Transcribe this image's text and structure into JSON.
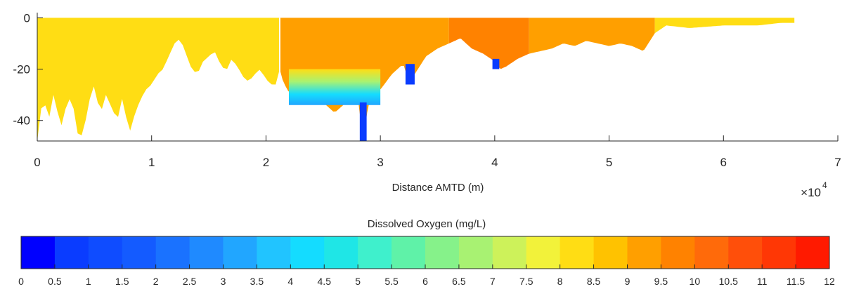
{
  "chart_data": [
    {
      "type": "heatmap",
      "title": "",
      "xlabel": "Distance AMTD (m)",
      "ylabel": "",
      "x_exponent_label": "×10",
      "x_exponent_power": "4",
      "xlim": [
        0,
        7
      ],
      "ylim": [
        -48,
        2
      ],
      "x_ticks": [
        0,
        1,
        2,
        3,
        4,
        5,
        6,
        7
      ],
      "x_tick_labels": [
        "0",
        "1",
        "2",
        "3",
        "4",
        "5",
        "6",
        "7"
      ],
      "y_ticks": [
        0,
        -20,
        -40
      ],
      "y_tick_labels": [
        "0",
        "-20",
        "-40"
      ],
      "x_units_note": "x values in units of 10^4 m",
      "surface_do_by_reach": [
        {
          "x_start": 0.0,
          "x_end": 2.12,
          "do_mg_l": 8.3
        },
        {
          "x_start": 2.12,
          "x_end": 3.6,
          "do_mg_l": 9.0
        },
        {
          "x_start": 3.6,
          "x_end": 4.3,
          "do_mg_l": 9.6
        },
        {
          "x_start": 4.3,
          "x_end": 5.4,
          "do_mg_l": 9.3
        },
        {
          "x_start": 5.4,
          "x_end": 6.62,
          "do_mg_l": 8.2
        }
      ],
      "bottom_depth_profile": [
        [
          0.0,
          -48
        ],
        [
          0.05,
          -30
        ],
        [
          0.1,
          -40
        ],
        [
          0.15,
          -28
        ],
        [
          0.2,
          -44
        ],
        [
          0.25,
          -35
        ],
        [
          0.3,
          -30
        ],
        [
          0.35,
          -45
        ],
        [
          0.4,
          -46
        ],
        [
          0.45,
          -33
        ],
        [
          0.5,
          -26
        ],
        [
          0.55,
          -38
        ],
        [
          0.6,
          -30
        ],
        [
          0.65,
          -35
        ],
        [
          0.7,
          -40
        ],
        [
          0.75,
          -30
        ],
        [
          0.8,
          -46
        ],
        [
          0.85,
          -38
        ],
        [
          0.9,
          -32
        ],
        [
          0.95,
          -28
        ],
        [
          1.0,
          -26
        ],
        [
          1.05,
          -22
        ],
        [
          1.1,
          -20
        ],
        [
          1.15,
          -15
        ],
        [
          1.2,
          -10
        ],
        [
          1.25,
          -8
        ],
        [
          1.3,
          -14
        ],
        [
          1.35,
          -20
        ],
        [
          1.4,
          -22
        ],
        [
          1.45,
          -17
        ],
        [
          1.5,
          -15
        ],
        [
          1.55,
          -13
        ],
        [
          1.6,
          -18
        ],
        [
          1.65,
          -21
        ],
        [
          1.7,
          -16
        ],
        [
          1.75,
          -19
        ],
        [
          1.8,
          -23
        ],
        [
          1.85,
          -25
        ],
        [
          1.9,
          -22
        ],
        [
          1.95,
          -20
        ],
        [
          2.0,
          -24
        ],
        [
          2.05,
          -26
        ],
        [
          2.1,
          -26
        ],
        [
          2.12,
          -20
        ],
        [
          2.15,
          -25
        ],
        [
          2.2,
          -29
        ],
        [
          2.3,
          -31
        ],
        [
          2.4,
          -34
        ],
        [
          2.5,
          -33
        ],
        [
          2.55,
          -35
        ],
        [
          2.6,
          -37
        ],
        [
          2.7,
          -33
        ],
        [
          2.8,
          -30
        ],
        [
          2.85,
          -48
        ],
        [
          2.9,
          -32
        ],
        [
          3.0,
          -28
        ],
        [
          3.1,
          -22
        ],
        [
          3.2,
          -18
        ],
        [
          3.25,
          -25
        ],
        [
          3.3,
          -22
        ],
        [
          3.4,
          -15
        ],
        [
          3.5,
          -12
        ],
        [
          3.6,
          -10
        ],
        [
          3.7,
          -8
        ],
        [
          3.8,
          -12
        ],
        [
          3.9,
          -14
        ],
        [
          4.0,
          -17
        ],
        [
          4.05,
          -20
        ],
        [
          4.1,
          -19
        ],
        [
          4.2,
          -16
        ],
        [
          4.3,
          -14
        ],
        [
          4.4,
          -13
        ],
        [
          4.5,
          -12
        ],
        [
          4.6,
          -10
        ],
        [
          4.7,
          -11
        ],
        [
          4.8,
          -9
        ],
        [
          4.9,
          -10
        ],
        [
          5.0,
          -11
        ],
        [
          5.1,
          -10
        ],
        [
          5.2,
          -11
        ],
        [
          5.3,
          -13
        ],
        [
          5.4,
          -6
        ],
        [
          5.5,
          -3
        ],
        [
          5.7,
          -4
        ],
        [
          6.0,
          -3
        ],
        [
          6.3,
          -3
        ],
        [
          6.5,
          -2
        ],
        [
          6.62,
          -2
        ]
      ],
      "low_do_features": [
        {
          "x_start": 2.2,
          "x_end": 3.0,
          "depth_top": -20,
          "depth_bottom": -34,
          "do_mg_l": 4.0
        },
        {
          "x_start": 2.82,
          "x_end": 2.88,
          "depth_top": -33,
          "depth_bottom": -48,
          "do_mg_l": 0.5
        },
        {
          "x_start": 3.22,
          "x_end": 3.3,
          "depth_top": -18,
          "depth_bottom": -26,
          "do_mg_l": 0.5
        },
        {
          "x_start": 3.98,
          "x_end": 4.04,
          "depth_top": -16,
          "depth_bottom": -20,
          "do_mg_l": 0.5
        }
      ],
      "colorbar": {
        "label": "Dissolved Oxygen (mg/L)",
        "min": 0,
        "max": 12,
        "step": 0.5,
        "tick_labels": [
          "0",
          "0.5",
          "1",
          "1.5",
          "2",
          "2.5",
          "3",
          "3.5",
          "4",
          "4.5",
          "5",
          "5.5",
          "6",
          "6.5",
          "7",
          "7.5",
          "8",
          "8.5",
          "9",
          "9.5",
          "10",
          "10.5",
          "11",
          "11.5",
          "12"
        ],
        "colors": [
          "#0000ff",
          "#0a3cff",
          "#0f4cff",
          "#145bff",
          "#1a72ff",
          "#1f8aff",
          "#21a6ff",
          "#21c4ff",
          "#14dcff",
          "#1fe6e6",
          "#3ff0cc",
          "#5ff2a8",
          "#86f28a",
          "#a8f272",
          "#cdf25a",
          "#f2f23a",
          "#ffdd14",
          "#ffc200",
          "#ff9f00",
          "#ff8200",
          "#ff6a0a",
          "#ff4f0a",
          "#ff3705",
          "#ff1a00"
        ]
      }
    }
  ]
}
